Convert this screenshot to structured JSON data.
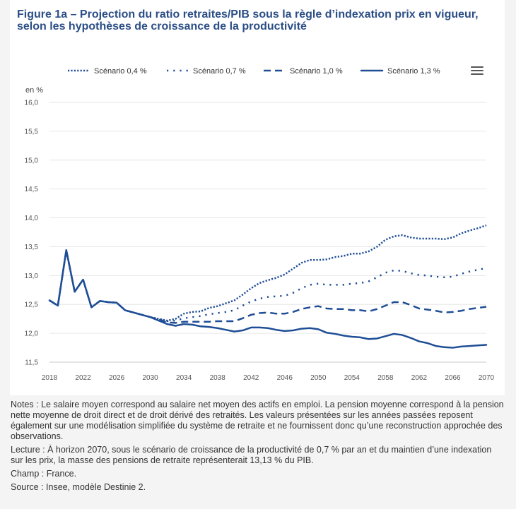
{
  "figure": {
    "title": "Figure 1a – Projection du ratio retraites/PIB sous la règle d’indexation prix en vigueur, selon les hypothèses de croissance de la productivité"
  },
  "chart_data": {
    "type": "line",
    "ylabel": "en %",
    "xlabel": "",
    "xlim": [
      2018,
      2070
    ],
    "ylim": [
      11.5,
      16.0
    ],
    "x_ticks": [
      "2018",
      "2022",
      "2026",
      "2030",
      "2034",
      "2038",
      "2042",
      "2046",
      "2050",
      "2054",
      "2058",
      "2062",
      "2066",
      "2070"
    ],
    "y_ticks": [
      "11,5",
      "12,0",
      "12,5",
      "13,0",
      "13,5",
      "14,0",
      "14,5",
      "15,0",
      "15,5",
      "16,0"
    ],
    "legend_position": "top",
    "color": "#1f4e96",
    "x": [
      2018,
      2019,
      2020,
      2021,
      2022,
      2023,
      2024,
      2025,
      2026,
      2027,
      2028,
      2029,
      2030,
      2031,
      2032,
      2033,
      2034,
      2035,
      2036,
      2037,
      2038,
      2039,
      2040,
      2041,
      2042,
      2043,
      2044,
      2045,
      2046,
      2047,
      2048,
      2049,
      2050,
      2051,
      2052,
      2053,
      2054,
      2055,
      2056,
      2057,
      2058,
      2059,
      2060,
      2061,
      2062,
      2063,
      2064,
      2065,
      2066,
      2067,
      2068,
      2069,
      2070
    ],
    "series": [
      {
        "name": "Scénario 0,4 %",
        "style": "dotted-dense",
        "values": [
          12.57,
          12.48,
          13.44,
          12.72,
          12.93,
          12.45,
          12.56,
          12.54,
          12.53,
          12.4,
          12.36,
          12.32,
          12.28,
          12.25,
          12.22,
          12.25,
          12.34,
          12.37,
          12.38,
          12.44,
          12.47,
          12.52,
          12.57,
          12.67,
          12.78,
          12.87,
          12.92,
          12.96,
          13.02,
          13.12,
          13.22,
          13.27,
          13.27,
          13.28,
          13.32,
          13.34,
          13.38,
          13.38,
          13.42,
          13.5,
          13.62,
          13.68,
          13.7,
          13.66,
          13.64,
          13.64,
          13.64,
          13.63,
          13.66,
          13.73,
          13.78,
          13.82,
          13.87
        ]
      },
      {
        "name": "Scénario 0,7 %",
        "style": "dotted-sparse",
        "values": [
          12.57,
          12.48,
          13.44,
          12.72,
          12.93,
          12.45,
          12.56,
          12.54,
          12.53,
          12.4,
          12.36,
          12.32,
          12.28,
          12.25,
          12.21,
          12.22,
          12.26,
          12.28,
          12.3,
          12.33,
          12.35,
          12.37,
          12.4,
          12.48,
          12.55,
          12.6,
          12.63,
          12.64,
          12.65,
          12.7,
          12.78,
          12.84,
          12.86,
          12.84,
          12.84,
          12.84,
          12.86,
          12.87,
          12.9,
          12.97,
          13.05,
          13.09,
          13.08,
          13.04,
          13.01,
          13.0,
          12.98,
          12.97,
          12.98,
          13.03,
          13.07,
          13.1,
          13.13
        ]
      },
      {
        "name": "Scénario 1,0 %",
        "style": "dashed",
        "values": [
          12.57,
          12.48,
          13.44,
          12.72,
          12.93,
          12.45,
          12.56,
          12.54,
          12.53,
          12.4,
          12.36,
          12.32,
          12.28,
          12.24,
          12.19,
          12.18,
          12.2,
          12.2,
          12.2,
          12.2,
          12.21,
          12.21,
          12.21,
          12.26,
          12.32,
          12.35,
          12.36,
          12.34,
          12.34,
          12.37,
          12.42,
          12.45,
          12.47,
          12.43,
          12.42,
          12.42,
          12.4,
          12.4,
          12.38,
          12.42,
          12.48,
          12.54,
          12.54,
          12.49,
          12.43,
          12.41,
          12.39,
          12.36,
          12.37,
          12.39,
          12.42,
          12.44,
          12.46
        ]
      },
      {
        "name": "Scénario 1,3 %",
        "style": "solid",
        "values": [
          12.57,
          12.48,
          13.44,
          12.72,
          12.93,
          12.45,
          12.56,
          12.54,
          12.53,
          12.4,
          12.36,
          12.32,
          12.28,
          12.22,
          12.16,
          12.13,
          12.16,
          12.15,
          12.12,
          12.11,
          12.09,
          12.06,
          12.03,
          12.05,
          12.1,
          12.1,
          12.09,
          12.06,
          12.04,
          12.05,
          12.08,
          12.09,
          12.07,
          12.01,
          11.99,
          11.96,
          11.94,
          11.93,
          11.9,
          11.91,
          11.95,
          11.99,
          11.97,
          11.92,
          11.86,
          11.83,
          11.78,
          11.76,
          11.75,
          11.77,
          11.78,
          11.79,
          11.8
        ]
      }
    ]
  },
  "notes": {
    "notes": "Notes : Le salaire moyen correspond au salaire net moyen des actifs en emploi. La pension moyenne correspond à la pension nette moyenne de droit direct et de droit dérivé des retraités. Les valeurs présentées sur les années passées reposent également sur une modélisation simplifiée du système de retraite et ne fournissent donc qu’une reconstruction approchée des observations.",
    "lecture": "Lecture : À horizon 2070, sous le scénario de croissance de la productivité de 0,7 % par an et du maintien d’une indexation sur les prix, la masse des pensions de retraite représenterait 13,13 % du PIB.",
    "champ": "Champ : France.",
    "source": "Source : Insee, modèle Destinie 2."
  }
}
